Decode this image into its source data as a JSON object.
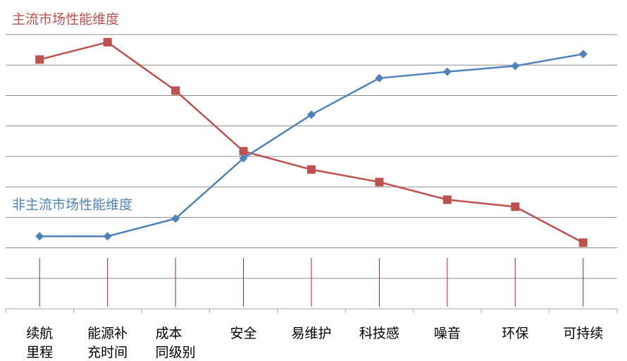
{
  "chart_data": {
    "type": "line",
    "categories": [
      "续航\n里程",
      "能源补\n充时间",
      "成本\n同级别",
      "安全",
      "易维护",
      "科技感",
      "噪音",
      "环保",
      "可持续"
    ],
    "series": [
      {
        "name": "主流市场性能维度",
        "color": "#c0504d",
        "marker": "square",
        "values": [
          8.18,
          8.75,
          7.16,
          5.17,
          4.57,
          4.16,
          3.58,
          3.35,
          2.17
        ]
      },
      {
        "name": "非主流市场性能维度",
        "color": "#4f81bd",
        "marker": "diamond",
        "values": [
          2.38,
          2.38,
          2.96,
          4.94,
          6.37,
          7.57,
          7.78,
          7.97,
          8.36
        ]
      }
    ],
    "ylim": [
      0,
      9
    ],
    "yticks": [
      0,
      1,
      2,
      3,
      4,
      5,
      6,
      7,
      8,
      9
    ],
    "grid": true
  }
}
